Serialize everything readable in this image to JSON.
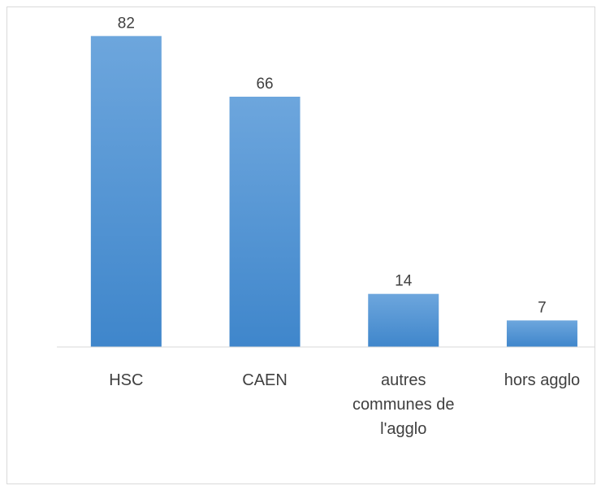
{
  "chart_data": {
    "type": "bar",
    "categories": [
      "HSC",
      "CAEN",
      "autres communes de l'agglo",
      "hors agglo"
    ],
    "values": [
      82,
      66,
      14,
      7
    ],
    "color": "#5b9bd5",
    "ylim": [
      0,
      90
    ]
  }
}
